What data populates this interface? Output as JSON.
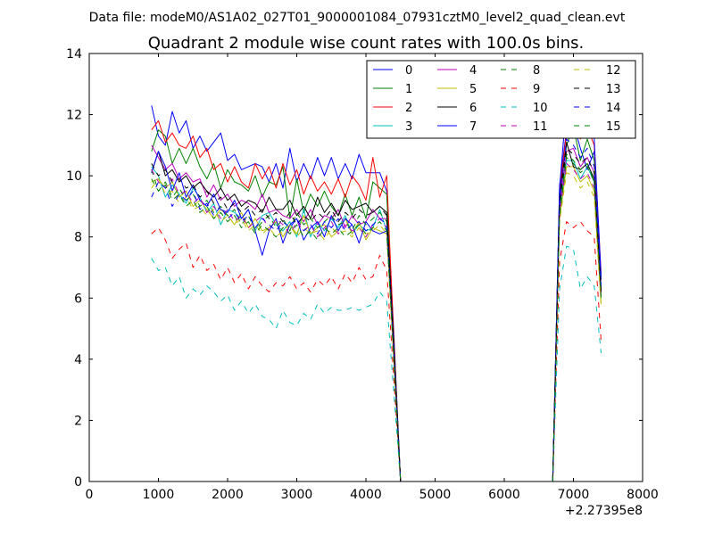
{
  "chart_data": {
    "type": "line",
    "supertitle": "Data file: modeM0/AS1A02_027T01_9000001084_07931cztM0_level2_quad_clean.evt",
    "title": "Quadrant 2 module wise count rates with 100.0s bins.",
    "xlabel": "",
    "ylabel": "",
    "x_offset_label": "+2.27395e8",
    "xlim": [
      0,
      8000
    ],
    "ylim": [
      0,
      14
    ],
    "xticks": [
      0,
      1000,
      2000,
      3000,
      4000,
      5000,
      6000,
      7000,
      8000
    ],
    "yticks": [
      0,
      2,
      4,
      6,
      8,
      10,
      12,
      14
    ],
    "xtick_labels": [
      "0",
      "1000",
      "2000",
      "3000",
      "4000",
      "5000",
      "6000",
      "7000",
      "8000"
    ],
    "ytick_labels": [
      "0",
      "2",
      "4",
      "6",
      "8",
      "10",
      "12",
      "14"
    ],
    "legend_position": "top-right",
    "legend_columns": 4,
    "x": [
      900,
      1000,
      1100,
      1200,
      1300,
      1400,
      1500,
      1600,
      1700,
      1800,
      1900,
      2000,
      2100,
      2200,
      2300,
      2400,
      2500,
      2600,
      2700,
      2800,
      2900,
      3000,
      3100,
      3200,
      3300,
      3400,
      3500,
      3600,
      3700,
      3800,
      3900,
      4000,
      4100,
      4200,
      4300,
      4400,
      4500,
      4600,
      6700,
      6800,
      6900,
      7000,
      7100,
      7200,
      7300,
      7400
    ],
    "series": [
      {
        "name": "0",
        "color": "#0000ff",
        "dash": "solid",
        "values": [
          12.3,
          11.3,
          11.0,
          12.1,
          11.4,
          11.8,
          10.9,
          11.3,
          10.8,
          11.1,
          11.4,
          10.5,
          10.7,
          10.2,
          10.3,
          10.4,
          10.3,
          9.8,
          10.4,
          9.6,
          10.9,
          9.8,
          10.4,
          9.9,
          10.6,
          10.0,
          10.6,
          9.9,
          10.4,
          9.9,
          10.7,
          10.1,
          10.1,
          10.1,
          9.5,
          5.0,
          0.0,
          0.0,
          0.0,
          9.7,
          11.5,
          11.7,
          10.9,
          10.2,
          10.8,
          6.6
        ]
      },
      {
        "name": "1",
        "color": "#008000",
        "dash": "solid",
        "values": [
          10.8,
          11.5,
          11.3,
          10.4,
          10.9,
          10.4,
          10.9,
          10.3,
          9.9,
          10.4,
          9.6,
          10.2,
          9.8,
          9.7,
          9.5,
          10.0,
          9.3,
          9.8,
          9.7,
          10.3,
          8.6,
          9.9,
          8.8,
          9.4,
          9.0,
          9.5,
          9.0,
          8.7,
          9.4,
          8.7,
          9.3,
          8.6,
          9.8,
          9.6,
          9.4,
          4.8,
          0.0,
          0.0,
          0.0,
          9.5,
          11.0,
          11.6,
          10.5,
          11.2,
          10.5,
          6.2
        ]
      },
      {
        "name": "2",
        "color": "#ff0000",
        "dash": "solid",
        "values": [
          11.5,
          11.8,
          11.1,
          11.4,
          11.0,
          10.9,
          11.3,
          10.6,
          10.9,
          10.2,
          10.4,
          9.8,
          10.3,
          9.8,
          9.6,
          10.4,
          9.9,
          10.3,
          9.6,
          10.4,
          9.7,
          10.2,
          9.4,
          10.0,
          9.5,
          9.8,
          9.4,
          9.9,
          9.3,
          10.0,
          9.7,
          9.2,
          10.6,
          9.3,
          10.0,
          4.8,
          0.0,
          0.0,
          0.0,
          9.5,
          11.4,
          12.2,
          11.2,
          11.6,
          11.0,
          6.8
        ]
      },
      {
        "name": "3",
        "color": "#00bfbf",
        "dash": "solid",
        "values": [
          10.3,
          10.0,
          9.3,
          9.7,
          9.4,
          9.1,
          9.6,
          9.3,
          8.8,
          9.1,
          8.4,
          8.9,
          8.8,
          8.6,
          8.9,
          8.2,
          8.7,
          8.8,
          8.4,
          8.2,
          8.5,
          8.0,
          8.9,
          8.0,
          8.5,
          8.2,
          8.6,
          8.3,
          8.7,
          8.1,
          8.4,
          8.2,
          8.3,
          8.9,
          8.2,
          4.2,
          0.0,
          0.0,
          0.0,
          8.8,
          10.5,
          10.5,
          9.9,
          10.3,
          9.8,
          6.0
        ]
      },
      {
        "name": "4",
        "color": "#bf00bf",
        "dash": "solid",
        "values": [
          11.0,
          10.6,
          10.2,
          10.4,
          9.9,
          10.1,
          9.8,
          9.9,
          9.3,
          9.7,
          9.2,
          9.4,
          9.0,
          9.2,
          9.1,
          8.9,
          9.4,
          8.8,
          8.9,
          8.7,
          8.6,
          8.9,
          8.5,
          8.9,
          8.4,
          8.7,
          8.6,
          8.9,
          8.3,
          8.7,
          8.4,
          8.5,
          8.9,
          8.6,
          8.6,
          4.4,
          0.0,
          0.0,
          0.0,
          9.0,
          10.8,
          10.9,
          10.3,
          10.6,
          10.1,
          6.2
        ]
      },
      {
        "name": "5",
        "color": "#bfbf00",
        "dash": "solid",
        "values": [
          9.8,
          9.9,
          9.6,
          9.8,
          9.3,
          9.5,
          9.0,
          9.2,
          8.9,
          8.6,
          8.9,
          8.7,
          8.4,
          8.8,
          8.3,
          8.6,
          8.2,
          8.3,
          8.5,
          8.0,
          8.4,
          8.1,
          8.7,
          8.1,
          8.3,
          8.4,
          8.0,
          8.2,
          8.6,
          8.1,
          8.5,
          7.9,
          8.3,
          8.2,
          8.1,
          4.1,
          0.0,
          0.0,
          0.0,
          8.6,
          10.3,
          10.3,
          9.8,
          10.0,
          9.5,
          5.8
        ]
      },
      {
        "name": "6",
        "color": "#000000",
        "dash": "solid",
        "values": [
          10.1,
          10.8,
          10.0,
          10.2,
          9.8,
          10.0,
          9.6,
          9.8,
          9.5,
          9.3,
          9.6,
          9.2,
          9.4,
          9.0,
          9.2,
          9.1,
          8.8,
          9.3,
          8.9,
          8.9,
          9.2,
          8.7,
          9.0,
          8.6,
          9.3,
          8.8,
          9.1,
          8.7,
          9.2,
          8.9,
          9.0,
          9.1,
          8.8,
          9.0,
          8.8,
          4.6,
          0.0,
          0.0,
          0.0,
          9.3,
          11.1,
          10.3,
          10.2,
          10.4,
          9.9,
          6.3
        ]
      },
      {
        "name": "7",
        "color": "#0000ff",
        "dash": "solid",
        "values": [
          10.1,
          10.8,
          10.3,
          9.5,
          10.1,
          9.3,
          9.7,
          9.2,
          9.0,
          9.4,
          8.9,
          8.8,
          9.2,
          8.6,
          8.9,
          8.2,
          7.4,
          8.2,
          8.6,
          7.8,
          8.4,
          8.6,
          7.9,
          8.3,
          8.5,
          8.0,
          8.7,
          8.2,
          8.6,
          8.4,
          7.8,
          8.5,
          8.2,
          8.1,
          8.2,
          4.3,
          0.0,
          0.0,
          0.0,
          9.6,
          12.4,
          12.0,
          12.1,
          11.9,
          11.2,
          6.7
        ]
      },
      {
        "name": "8",
        "color": "#008000",
        "dash": "dashed",
        "values": [
          10.2,
          9.5,
          9.8,
          9.3,
          9.6,
          9.2,
          9.4,
          9.0,
          9.2,
          8.8,
          9.0,
          8.7,
          8.9,
          8.4,
          8.7,
          8.2,
          8.5,
          8.7,
          8.3,
          8.6,
          8.2,
          8.8,
          8.4,
          8.6,
          8.3,
          8.5,
          8.7,
          8.4,
          8.5,
          8.2,
          8.7,
          8.4,
          8.6,
          8.8,
          8.5,
          4.3,
          0.0,
          0.0,
          0.0,
          9.0,
          10.7,
          10.5,
          10.2,
          10.4,
          9.8,
          6.0
        ]
      },
      {
        "name": "9",
        "color": "#ff0000",
        "dash": "dashed",
        "values": [
          8.1,
          8.3,
          7.9,
          7.3,
          7.6,
          7.8,
          7.0,
          7.4,
          6.9,
          7.1,
          6.6,
          7.0,
          6.5,
          6.8,
          6.3,
          6.7,
          6.4,
          6.2,
          6.5,
          6.4,
          6.7,
          6.3,
          6.5,
          6.2,
          6.6,
          6.4,
          6.7,
          6.3,
          6.8,
          6.5,
          7.0,
          6.6,
          6.7,
          7.4,
          6.9,
          3.5,
          0.0,
          0.0,
          0.0,
          7.2,
          8.5,
          8.3,
          8.5,
          8.2,
          8.0,
          4.6
        ]
      },
      {
        "name": "10",
        "color": "#00bfbf",
        "dash": "dashed",
        "values": [
          7.3,
          6.9,
          7.0,
          6.4,
          6.7,
          6.0,
          6.3,
          6.1,
          6.4,
          6.2,
          5.9,
          6.1,
          5.6,
          5.9,
          5.5,
          5.8,
          5.4,
          5.3,
          5.0,
          5.6,
          5.2,
          5.1,
          5.5,
          5.3,
          5.8,
          5.5,
          5.7,
          5.6,
          5.6,
          5.7,
          5.6,
          5.7,
          5.8,
          6.2,
          5.9,
          3.0,
          0.0,
          0.0,
          0.0,
          6.3,
          7.7,
          7.6,
          6.3,
          6.7,
          6.4,
          4.2
        ]
      },
      {
        "name": "11",
        "color": "#bf00bf",
        "dash": "dashed",
        "values": [
          10.2,
          9.8,
          9.6,
          9.9,
          9.4,
          9.5,
          9.1,
          9.3,
          8.8,
          9.0,
          8.6,
          8.9,
          8.5,
          8.7,
          8.3,
          8.5,
          8.7,
          8.2,
          8.6,
          8.4,
          8.1,
          8.5,
          8.2,
          8.4,
          8.0,
          8.3,
          8.5,
          8.1,
          8.4,
          8.2,
          8.3,
          8.0,
          8.4,
          8.6,
          8.3,
          4.2,
          0.0,
          0.0,
          0.0,
          8.8,
          10.4,
          10.2,
          9.9,
          10.1,
          9.6,
          5.9
        ]
      },
      {
        "name": "12",
        "color": "#bfbf00",
        "dash": "dashed",
        "values": [
          9.6,
          9.9,
          9.4,
          9.5,
          9.1,
          9.3,
          8.9,
          9.0,
          8.7,
          8.9,
          8.5,
          8.7,
          8.4,
          8.6,
          8.2,
          8.4,
          8.1,
          8.3,
          8.0,
          8.2,
          8.4,
          8.0,
          8.3,
          8.1,
          8.2,
          7.9,
          8.3,
          8.1,
          8.2,
          8.0,
          8.3,
          8.1,
          8.2,
          8.4,
          8.1,
          4.1,
          0.0,
          0.0,
          0.0,
          8.5,
          10.1,
          10.0,
          9.6,
          9.8,
          9.3,
          5.7
        ]
      },
      {
        "name": "13",
        "color": "#000000",
        "dash": "dashed",
        "values": [
          10.4,
          10.0,
          10.2,
          9.8,
          9.9,
          9.6,
          9.7,
          9.3,
          9.5,
          9.1,
          9.3,
          8.9,
          9.1,
          8.8,
          9.0,
          8.7,
          8.9,
          8.6,
          8.8,
          8.5,
          8.8,
          8.4,
          8.7,
          8.5,
          8.8,
          8.6,
          8.9,
          8.5,
          8.8,
          8.6,
          8.9,
          8.7,
          8.8,
          9.0,
          8.7,
          4.5,
          0.0,
          0.0,
          0.0,
          9.1,
          10.9,
          10.7,
          10.4,
          10.6,
          10.1,
          6.2
        ]
      },
      {
        "name": "14",
        "color": "#0000ff",
        "dash": "dashed",
        "values": [
          9.3,
          9.8,
          9.6,
          9.0,
          9.4,
          9.2,
          9.5,
          8.9,
          9.1,
          8.7,
          9.0,
          8.6,
          8.8,
          8.5,
          8.7,
          8.3,
          8.6,
          8.4,
          8.2,
          8.5,
          8.3,
          8.6,
          8.2,
          8.4,
          8.1,
          8.5,
          8.3,
          8.6,
          8.2,
          8.4,
          8.5,
          8.2,
          8.4,
          8.6,
          8.4,
          4.3,
          0.0,
          0.0,
          0.0,
          9.2,
          11.2,
          11.0,
          10.6,
          10.9,
          10.3,
          6.4
        ]
      },
      {
        "name": "15",
        "color": "#008000",
        "dash": "dashed",
        "values": [
          9.9,
          9.5,
          9.7,
          9.2,
          9.4,
          9.0,
          9.2,
          8.8,
          9.0,
          8.6,
          8.8,
          8.5,
          8.7,
          8.3,
          8.5,
          8.1,
          8.4,
          8.2,
          8.0,
          8.3,
          8.1,
          8.4,
          8.0,
          8.2,
          7.9,
          8.3,
          8.1,
          8.3,
          8.0,
          8.2,
          8.4,
          8.1,
          8.3,
          8.5,
          8.2,
          4.1,
          0.0,
          0.0,
          0.0,
          8.7,
          10.6,
          10.4,
          10.1,
          10.3,
          9.8,
          6.0
        ]
      }
    ]
  }
}
